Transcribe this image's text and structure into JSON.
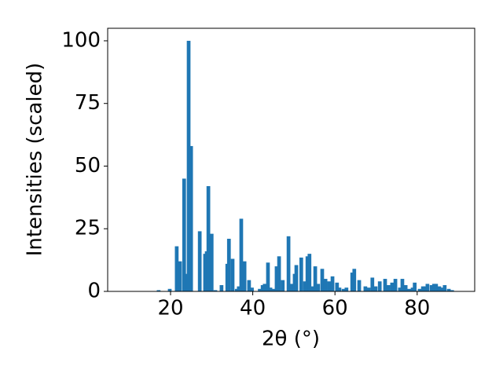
{
  "chart_data": {
    "type": "bar",
    "xlabel": "2θ (°)",
    "ylabel": "Intensities (scaled)",
    "color": "#1f77b4",
    "x": [
      17.1,
      19.8,
      21.5,
      22.3,
      23.3,
      24.0,
      24.4,
      25.0,
      27.1,
      28.4,
      28.8,
      29.2,
      30.0,
      30.9,
      32.4,
      33.8,
      34.2,
      35.1,
      36.1,
      36.6,
      37.2,
      38.0,
      39.1,
      39.8,
      41.7,
      42.4,
      42.9,
      43.7,
      44.3,
      45.0,
      45.8,
      46.4,
      47.3,
      48.7,
      49.4,
      50.2,
      50.6,
      51.8,
      52.7,
      53.3,
      53.8,
      54.6,
      55.2,
      55.9,
      56.9,
      57.7,
      58.6,
      59.4,
      60.5,
      61.1,
      62.1,
      62.8,
      64.2,
      64.7,
      65.9,
      67.4,
      68.2,
      69.1,
      69.9,
      70.9,
      72.2,
      73.0,
      73.9,
      74.7,
      75.8,
      76.4,
      77.2,
      78.1,
      78.9,
      79.4,
      80.6,
      81.4,
      82.0,
      82.5,
      83.5,
      84.1,
      84.6,
      85.4,
      86.2,
      86.7,
      87.7,
      88.5
    ],
    "values": [
      0.5,
      1,
      18,
      12,
      45,
      7,
      100,
      58,
      24,
      15,
      16,
      42,
      23,
      0.5,
      2.5,
      11,
      21,
      13,
      1,
      2,
      29,
      12,
      4.5,
      1.5,
      1,
      2.5,
      3,
      11.5,
      1.5,
      1,
      10,
      14,
      4.5,
      22,
      3,
      7,
      10.5,
      13.5,
      4,
      14,
      15,
      2,
      10,
      3,
      9,
      5,
      4,
      6,
      3.5,
      1.5,
      1,
      1.5,
      7.5,
      9,
      4.5,
      2,
      1.5,
      5.5,
      2,
      4,
      5,
      2.5,
      3.5,
      5,
      1.5,
      5,
      2.5,
      1,
      1.5,
      3.5,
      1,
      2,
      2,
      3,
      2.5,
      3,
      3,
      2,
      1.5,
      2.5,
      1,
      0.5
    ],
    "xlim": [
      4.7,
      94
    ],
    "ylim": [
      0,
      105
    ],
    "xticks": [
      20,
      40,
      60,
      80
    ],
    "yticks": [
      0,
      25,
      50,
      75,
      100
    ]
  }
}
